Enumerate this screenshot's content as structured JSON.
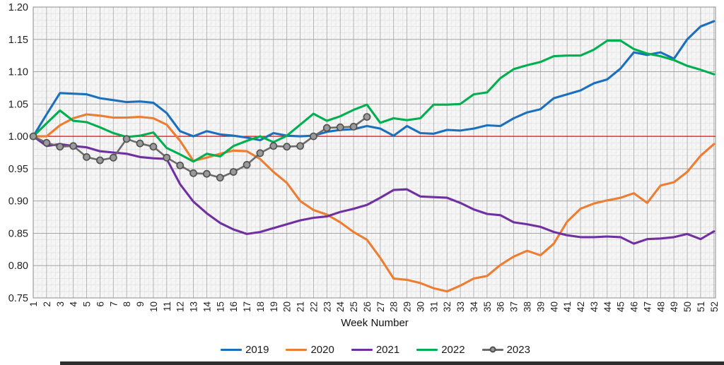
{
  "chart_data": {
    "type": "line",
    "title": "",
    "xlabel": "Week Number",
    "ylabel": "",
    "x": [
      1,
      2,
      3,
      4,
      5,
      6,
      7,
      8,
      9,
      10,
      11,
      12,
      13,
      14,
      15,
      16,
      17,
      18,
      19,
      20,
      21,
      22,
      23,
      24,
      25,
      26,
      27,
      28,
      29,
      30,
      31,
      32,
      33,
      34,
      35,
      36,
      37,
      38,
      39,
      40,
      41,
      42,
      43,
      44,
      45,
      46,
      47,
      48,
      49,
      50,
      51,
      52
    ],
    "xlim": [
      1,
      52
    ],
    "ylim": [
      0.75,
      1.2
    ],
    "ytick_step": 0.05,
    "grid": "major+minor",
    "legend_position": "bottom",
    "baseline": {
      "value": 1.0,
      "color": "#FF0000"
    },
    "series": [
      {
        "name": "2019",
        "color": "#1B70BE",
        "marker": "none",
        "values": [
          1.0,
          1.034,
          1.067,
          1.066,
          1.065,
          1.059,
          1.056,
          1.053,
          1.054,
          1.052,
          1.036,
          1.008,
          1.0,
          1.008,
          1.003,
          1.001,
          0.998,
          0.994,
          1.005,
          1.001,
          1.0,
          1.001,
          1.007,
          1.01,
          1.011,
          1.016,
          1.012,
          1.001,
          1.016,
          1.005,
          1.004,
          1.01,
          1.009,
          1.012,
          1.017,
          1.016,
          1.028,
          1.037,
          1.042,
          1.059,
          1.065,
          1.071,
          1.082,
          1.088,
          1.105,
          1.13,
          1.126,
          1.13,
          1.12,
          1.15,
          1.17,
          1.178
        ]
      },
      {
        "name": "2020",
        "color": "#ED7D31",
        "marker": "none",
        "values": [
          1.0,
          1.0,
          1.017,
          1.028,
          1.034,
          1.032,
          1.029,
          1.029,
          1.03,
          1.028,
          1.018,
          0.993,
          0.962,
          0.967,
          0.973,
          0.978,
          0.977,
          0.965,
          0.945,
          0.928,
          0.9,
          0.886,
          0.879,
          0.867,
          0.852,
          0.84,
          0.812,
          0.78,
          0.778,
          0.773,
          0.765,
          0.76,
          0.769,
          0.78,
          0.784,
          0.801,
          0.814,
          0.823,
          0.816,
          0.834,
          0.868,
          0.888,
          0.896,
          0.901,
          0.905,
          0.912,
          0.897,
          0.924,
          0.929,
          0.945,
          0.97,
          0.988
        ]
      },
      {
        "name": "2021",
        "color": "#7030A0",
        "marker": "none",
        "values": [
          1.0,
          0.985,
          0.988,
          0.985,
          0.983,
          0.977,
          0.975,
          0.973,
          0.968,
          0.966,
          0.965,
          0.926,
          0.899,
          0.881,
          0.866,
          0.856,
          0.849,
          0.852,
          0.858,
          0.864,
          0.87,
          0.874,
          0.876,
          0.883,
          0.888,
          0.894,
          0.905,
          0.917,
          0.918,
          0.907,
          0.906,
          0.905,
          0.897,
          0.887,
          0.88,
          0.878,
          0.867,
          0.864,
          0.86,
          0.852,
          0.847,
          0.844,
          0.844,
          0.845,
          0.844,
          0.834,
          0.841,
          0.842,
          0.844,
          0.849,
          0.841,
          0.853
        ]
      },
      {
        "name": "2022",
        "color": "#00B050",
        "marker": "none",
        "values": [
          1.0,
          1.02,
          1.04,
          1.024,
          1.022,
          1.014,
          1.005,
          0.999,
          1.001,
          1.006,
          0.982,
          0.972,
          0.961,
          0.973,
          0.969,
          0.985,
          0.993,
          1.0,
          0.991,
          1.001,
          1.018,
          1.035,
          1.024,
          1.031,
          1.041,
          1.049,
          1.021,
          1.028,
          1.025,
          1.028,
          1.049,
          1.049,
          1.05,
          1.065,
          1.068,
          1.09,
          1.104,
          1.11,
          1.115,
          1.124,
          1.125,
          1.125,
          1.134,
          1.148,
          1.148,
          1.135,
          1.128,
          1.124,
          1.118,
          1.109,
          1.103,
          1.096
        ]
      },
      {
        "name": "2023",
        "color": "#6B6B6B",
        "marker": "circle",
        "marker_fill": "#999999",
        "marker_stroke": "#4F4F4F",
        "values": [
          1.0,
          0.99,
          0.984,
          0.985,
          0.968,
          0.963,
          0.967,
          0.996,
          0.989,
          0.984,
          0.967,
          0.955,
          0.943,
          0.942,
          0.936,
          0.945,
          0.956,
          0.974,
          0.985,
          0.984,
          0.985,
          1.0,
          1.013,
          1.014,
          1.015,
          1.03
        ]
      }
    ],
    "style": {
      "plot_bg": "#F6F6F6",
      "grid_major_h": "#9A9A9A",
      "grid_minor_h": "#DCDCDC",
      "grid_week_v": "#A6A6A6",
      "grid_sub_v": "#E3E3E3",
      "plot_border": "#8C8C8C",
      "axis_text": "#212121"
    }
  }
}
